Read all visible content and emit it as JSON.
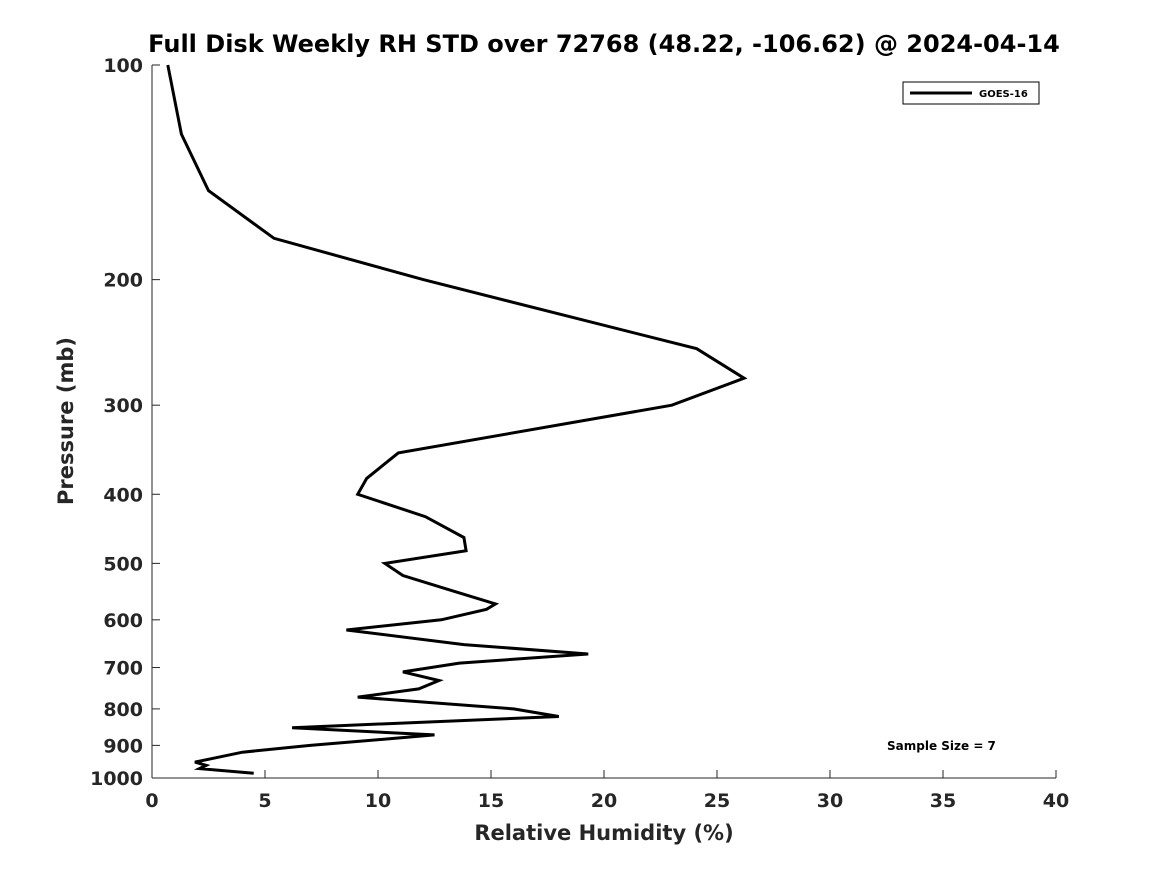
{
  "chart_data": {
    "type": "line",
    "title": "Full Disk Weekly RH STD over 72768 (48.22, -106.62) @ 2024-04-14",
    "xlabel": "Relative Humidity (%)",
    "ylabel": "Pressure (mb)",
    "xlim": [
      0,
      40
    ],
    "ylim": [
      1000,
      100
    ],
    "y_scale": "log",
    "y_reversed": true,
    "x_ticks": [
      0,
      5,
      10,
      15,
      20,
      25,
      30,
      35,
      40
    ],
    "y_ticks": [
      100,
      200,
      300,
      400,
      500,
      600,
      700,
      800,
      900,
      1000
    ],
    "grid": false,
    "legend_position": "top-right",
    "series": [
      {
        "name": "GOES-16",
        "color": "#000000",
        "points": [
          {
            "x": 0.7,
            "p": 100
          },
          {
            "x": 1.3,
            "p": 125
          },
          {
            "x": 2.5,
            "p": 150
          },
          {
            "x": 5.4,
            "p": 175
          },
          {
            "x": 12.0,
            "p": 200
          },
          {
            "x": 24.1,
            "p": 250
          },
          {
            "x": 26.2,
            "p": 275
          },
          {
            "x": 23.0,
            "p": 300
          },
          {
            "x": 10.9,
            "p": 350
          },
          {
            "x": 9.5,
            "p": 380
          },
          {
            "x": 9.1,
            "p": 400
          },
          {
            "x": 12.1,
            "p": 430
          },
          {
            "x": 13.8,
            "p": 460
          },
          {
            "x": 13.9,
            "p": 480
          },
          {
            "x": 10.3,
            "p": 500
          },
          {
            "x": 11.1,
            "p": 520
          },
          {
            "x": 13.6,
            "p": 550
          },
          {
            "x": 15.2,
            "p": 570
          },
          {
            "x": 14.8,
            "p": 580
          },
          {
            "x": 12.8,
            "p": 600
          },
          {
            "x": 8.6,
            "p": 620
          },
          {
            "x": 13.8,
            "p": 650
          },
          {
            "x": 19.3,
            "p": 670
          },
          {
            "x": 13.6,
            "p": 690
          },
          {
            "x": 11.1,
            "p": 710
          },
          {
            "x": 12.7,
            "p": 730
          },
          {
            "x": 11.8,
            "p": 750
          },
          {
            "x": 9.1,
            "p": 770
          },
          {
            "x": 16.0,
            "p": 800
          },
          {
            "x": 18.0,
            "p": 820
          },
          {
            "x": 6.2,
            "p": 850
          },
          {
            "x": 12.5,
            "p": 870
          },
          {
            "x": 10.7,
            "p": 880
          },
          {
            "x": 7.0,
            "p": 900
          },
          {
            "x": 4.0,
            "p": 920
          },
          {
            "x": 2.6,
            "p": 940
          },
          {
            "x": 1.9,
            "p": 950
          },
          {
            "x": 2.4,
            "p": 960
          },
          {
            "x": 2.1,
            "p": 970
          },
          {
            "x": 4.5,
            "p": 985
          }
        ]
      }
    ],
    "annotations": [
      "Sample Size = 7"
    ]
  }
}
